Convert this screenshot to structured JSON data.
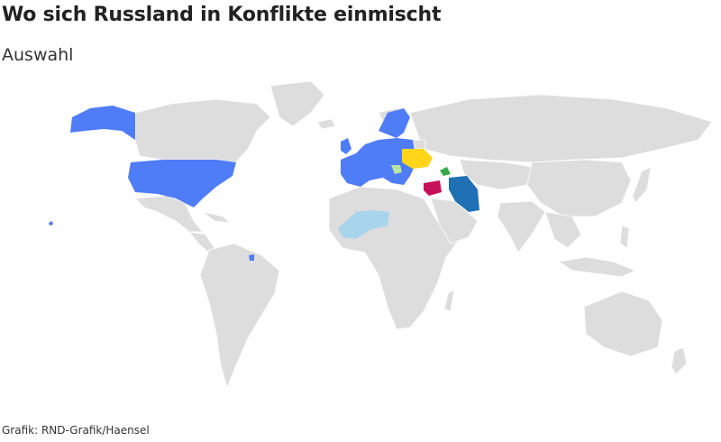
{
  "title": "Wo sich Russland in Konflikte einmischt",
  "subtitle": "Auswahl",
  "credit": "Grafik: RND-Grafik/Haensel",
  "colors": {
    "land": "#dddddd",
    "west": "#4f7cf7",
    "ukraine": "#ffd51a",
    "syria": "#c8105a",
    "iran": "#1f70b5",
    "sahel": "#a8d4ec",
    "serbia": "#b8e6a0",
    "caucasus": "#38a84a"
  }
}
